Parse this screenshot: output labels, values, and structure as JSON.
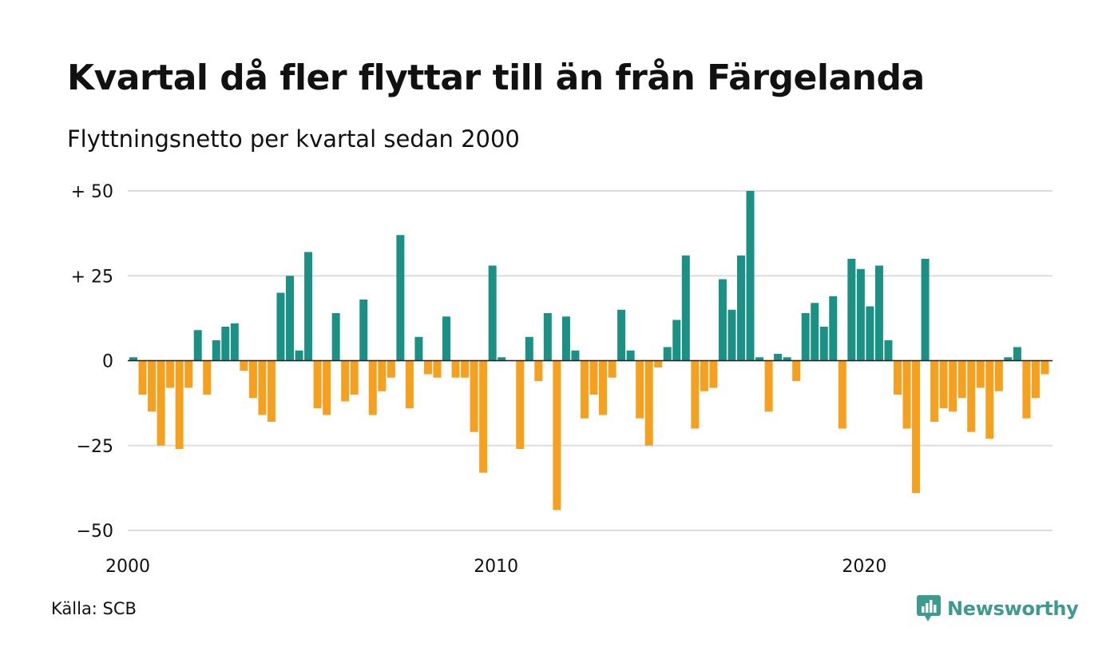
{
  "header": {
    "title": "Kvartal då fler flyttar till än från Färgelanda",
    "subtitle": "Flyttningsnetto per kvartal sedan 2000"
  },
  "footer": {
    "source": "Källa: SCB",
    "brand": "Newsworthy",
    "brand_icon": "bar-chart-speech-bubble-icon"
  },
  "colors": {
    "positive": "#1a9184",
    "negative": "#f5a01f",
    "grid": "#dddddd",
    "brand": "#3d9a8f"
  },
  "chart_data": {
    "type": "bar",
    "x_start_year": 2000,
    "periods_per_year": 4,
    "values": [
      1,
      -10,
      -15,
      -25,
      -8,
      -26,
      -8,
      9,
      -10,
      6,
      10,
      11,
      -3,
      -11,
      -16,
      -18,
      20,
      25,
      3,
      32,
      -14,
      -16,
      14,
      -12,
      -10,
      18,
      -16,
      -9,
      -5,
      37,
      -14,
      7,
      -4,
      -5,
      13,
      -5,
      -5,
      -21,
      -33,
      28,
      1,
      0,
      -26,
      7,
      -6,
      14,
      -44,
      13,
      3,
      -17,
      -10,
      -16,
      -5,
      15,
      3,
      -17,
      -25,
      -2,
      4,
      12,
      31,
      -20,
      -9,
      -8,
      24,
      15,
      31,
      50,
      1,
      -15,
      2,
      1,
      -6,
      14,
      17,
      10,
      19,
      -20,
      30,
      27,
      16,
      28,
      6,
      -10,
      -20,
      -39,
      30,
      -18,
      -14,
      -15,
      -11,
      -21,
      -8,
      -23,
      -9,
      1,
      4,
      -17,
      -11,
      -4
    ],
    "yticks": [
      50,
      25,
      0,
      -25,
      -50
    ],
    "ytick_labels": [
      "+ 50",
      "+ 25",
      "0",
      "−25",
      "−50"
    ],
    "xticks": [
      2000,
      2010,
      2020
    ],
    "xtick_labels": [
      "2000",
      "2010",
      "2020"
    ],
    "ylim": [
      -50,
      50
    ],
    "grid": true
  }
}
